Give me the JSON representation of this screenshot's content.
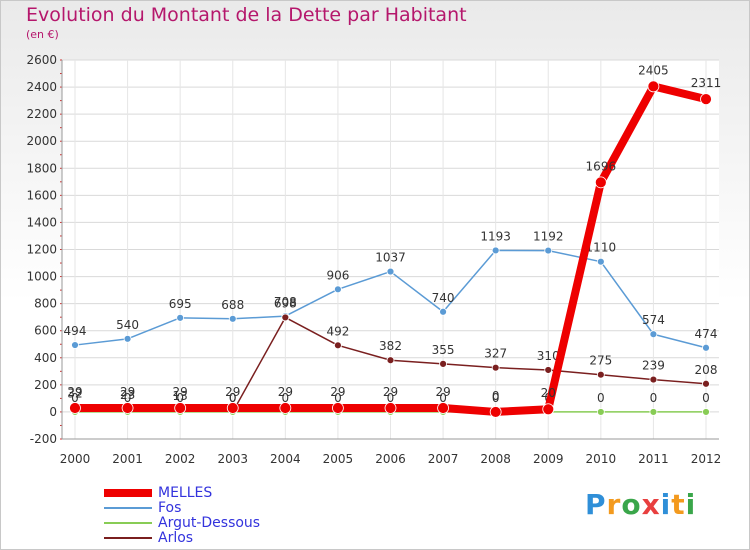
{
  "header": {
    "title": "Evolution du Montant de la Dette par Habitant",
    "subtitle": "(en €)"
  },
  "logo": {
    "text": "Proxiti",
    "letters": [
      {
        "ch": "P",
        "color": "#2f8fd8"
      },
      {
        "ch": "r",
        "color": "#f39a1e"
      },
      {
        "ch": "o",
        "color": "#3aa64a"
      },
      {
        "ch": "x",
        "color": "#e83f3f"
      },
      {
        "ch": "i",
        "color": "#2f8fd8"
      },
      {
        "ch": "t",
        "color": "#f39a1e"
      },
      {
        "ch": "i",
        "color": "#3aa64a"
      }
    ]
  },
  "chart_data": {
    "type": "line",
    "x": [
      "2000",
      "2001",
      "2002",
      "2003",
      "2004",
      "2005",
      "2006",
      "2007",
      "2008",
      "2009",
      "2010",
      "2011",
      "2012"
    ],
    "ylim": [
      -200,
      2600
    ],
    "yticks": [
      "-200",
      "0",
      "200",
      "400",
      "600",
      "800",
      "1000",
      "1200",
      "1400",
      "1600",
      "1800",
      "2000",
      "2200",
      "2400",
      "2600"
    ],
    "ytick_values": [
      -200,
      0,
      200,
      400,
      600,
      800,
      1000,
      1200,
      1400,
      1600,
      1800,
      2000,
      2200,
      2400,
      2600
    ],
    "grid": true,
    "legend_position": "bottom-left",
    "series": [
      {
        "name": "Fos",
        "color": "#5b9bd5",
        "values": [
          494,
          540,
          695,
          688,
          708,
          906,
          1037,
          740,
          1193,
          1192,
          1110,
          574,
          474
        ],
        "labels": [
          "494",
          "540",
          "695",
          "688",
          "708",
          "906",
          "1037",
          "740",
          "1193",
          "1192",
          "1110",
          "574",
          "474"
        ]
      },
      {
        "name": "Arlos",
        "color": "#7a1f1f",
        "values": [
          32,
          23,
          13,
          0,
          698,
          492,
          382,
          355,
          327,
          310,
          275,
          239,
          208
        ],
        "labels": [
          "32",
          "23",
          "13",
          "0",
          "698",
          "492",
          "382",
          "355",
          "327",
          "310",
          "275",
          "239",
          "208"
        ]
      },
      {
        "name": "Argut-Dessous",
        "color": "#88cc55",
        "values": [
          0,
          0,
          0,
          0,
          0,
          0,
          0,
          0,
          0,
          0,
          0,
          0,
          0
        ],
        "labels": [
          "0",
          "0",
          "0",
          "0",
          "0",
          "0",
          "0",
          "0",
          "0",
          "0",
          "0",
          "0",
          "0"
        ]
      },
      {
        "name": "MELLES",
        "color": "#ee0000",
        "values": [
          29,
          29,
          29,
          29,
          29,
          29,
          29,
          29,
          0,
          20,
          1696,
          2405,
          2311
        ],
        "labels": [
          "29",
          "29",
          "29",
          "29",
          "29",
          "29",
          "29",
          "29",
          "0",
          "20",
          "1696",
          "2405",
          "2311"
        ]
      }
    ],
    "legend": [
      "MELLES",
      "Fos",
      "Argut-Dessous",
      "Arlos"
    ]
  }
}
